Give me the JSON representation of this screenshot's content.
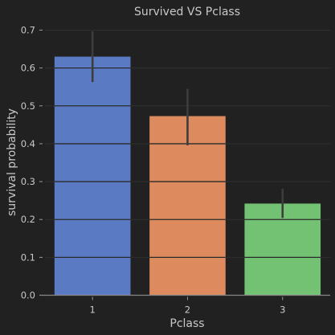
{
  "chart_data": {
    "type": "bar",
    "title": "Survived VS Pclass",
    "xlabel": "Pclass",
    "ylabel": "survival probability",
    "categories": [
      "1",
      "2",
      "3"
    ],
    "values": [
      0.63,
      0.473,
      0.242
    ],
    "error_bars": [
      {
        "low": 0.563,
        "high": 0.697
      },
      {
        "low": 0.396,
        "high": 0.545
      },
      {
        "low": 0.204,
        "high": 0.281
      }
    ],
    "bar_colors": [
      "#5a7bc4",
      "#dd8a5e",
      "#73c274"
    ],
    "ylim": [
      0,
      0.7
    ],
    "yticks": [
      "0.0",
      "0.1",
      "0.2",
      "0.3",
      "0.4",
      "0.5",
      "0.6",
      "0.7"
    ],
    "grid": true,
    "background": "#212121",
    "grid_color": "#303030",
    "error_bar_color": "#3d3d3d"
  }
}
